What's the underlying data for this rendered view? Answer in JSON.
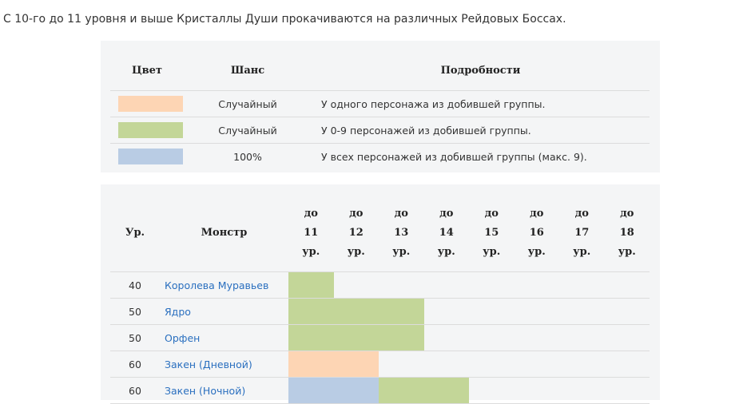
{
  "intro": "С 10-го до 11 уровня и выше Кристаллы Души прокачиваются на различных Рейдовых Боссах.",
  "colors": {
    "orange": "#fdd5b4",
    "green": "#c3d698",
    "blue": "#b9cce4"
  },
  "legend": {
    "headers": {
      "color": "Цвет",
      "chance": "Шанс",
      "details": "Подробности"
    },
    "rows": [
      {
        "color": "orange",
        "chance": "Случайный",
        "details": "У одного персонажа из добившей группы."
      },
      {
        "color": "green",
        "chance": "Случайный",
        "details": "У 0-9 персонажей из добившей группы."
      },
      {
        "color": "blue",
        "chance": "100%",
        "details": "У всех персонажей из добившей группы (макс. 9)."
      }
    ]
  },
  "monsters": {
    "headers": {
      "level": "Ур.",
      "monster": "Монстр",
      "ranges": [
        [
          "до",
          "11",
          "ур."
        ],
        [
          "до",
          "12",
          "ур."
        ],
        [
          "до",
          "13",
          "ур."
        ],
        [
          "до",
          "14",
          "ур."
        ],
        [
          "до",
          "15",
          "ур."
        ],
        [
          "до",
          "16",
          "ур."
        ],
        [
          "до",
          "17",
          "ур."
        ],
        [
          "до",
          "18",
          "ур."
        ]
      ]
    },
    "rows": [
      {
        "level": "40",
        "name": "Королева Муравьев",
        "cells": [
          "green",
          "",
          "",
          "",
          "",
          "",
          "",
          ""
        ]
      },
      {
        "level": "50",
        "name": "Ядро",
        "cells": [
          "green",
          "green",
          "green",
          "",
          "",
          "",
          "",
          ""
        ]
      },
      {
        "level": "50",
        "name": "Орфен",
        "cells": [
          "green",
          "green",
          "green",
          "",
          "",
          "",
          "",
          ""
        ]
      },
      {
        "level": "60",
        "name": "Закен (Дневной)",
        "cells": [
          "orange",
          "orange",
          "",
          "",
          "",
          "",
          "",
          ""
        ]
      },
      {
        "level": "60",
        "name": "Закен (Ночной)",
        "cells": [
          "blue",
          "blue",
          "green",
          "green",
          "",
          "",
          "",
          ""
        ]
      }
    ]
  }
}
